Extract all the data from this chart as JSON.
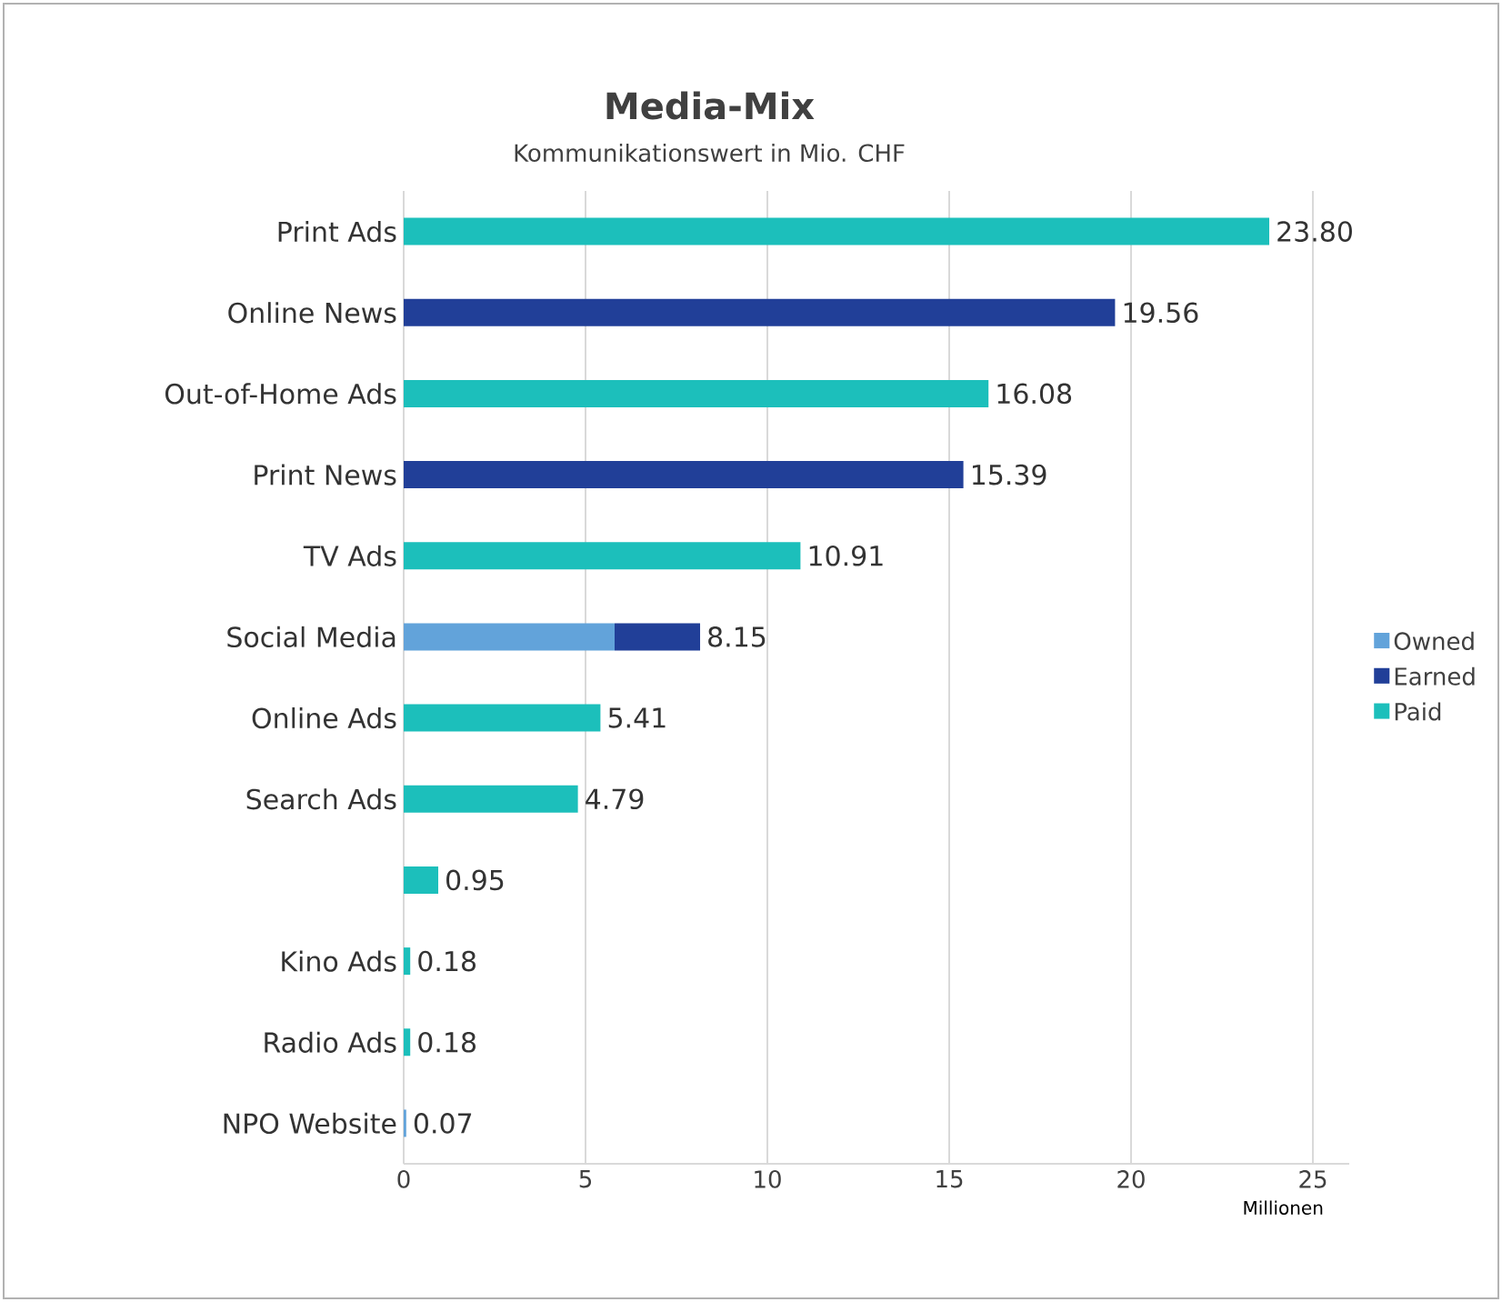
{
  "chart_data": {
    "type": "bar",
    "orientation": "horizontal",
    "stacked": true,
    "title": "Media-Mix",
    "subtitle": "Kommunikationswert in Mio. CHF",
    "xlabel": "Millionen",
    "categories": [
      "Print Ads",
      "Online News",
      "Out-of-Home Ads",
      "Print News",
      "TV Ads",
      "Social Media",
      "Online Ads",
      "Search Ads",
      null,
      "Kino Ads",
      "Radio Ads",
      "NPO Website"
    ],
    "series": [
      {
        "name": "Owned",
        "color": "#62a3da",
        "values": [
          null,
          null,
          null,
          null,
          null,
          5.8,
          null,
          null,
          null,
          null,
          null,
          0.07
        ]
      },
      {
        "name": "Earned",
        "color": "#213f98",
        "values": [
          null,
          19.56,
          null,
          15.39,
          null,
          2.35,
          null,
          null,
          null,
          null,
          null,
          null
        ]
      },
      {
        "name": "Paid",
        "color": "#1cbfbb",
        "values": [
          23.8,
          null,
          16.08,
          null,
          10.91,
          null,
          5.41,
          4.79,
          0.95,
          0.18,
          0.18,
          null
        ]
      }
    ],
    "totals": [
      "23.80",
      "19.56",
      "16.08",
      "15.39",
      "10.91",
      "8.15",
      "5.41",
      "4.79",
      "0.95",
      "0.18",
      "0.18",
      "0.07"
    ],
    "xlim": [
      0,
      26
    ],
    "xticks": [
      0,
      5,
      10,
      15,
      20,
      25
    ],
    "grid": "x",
    "legend": "right"
  }
}
